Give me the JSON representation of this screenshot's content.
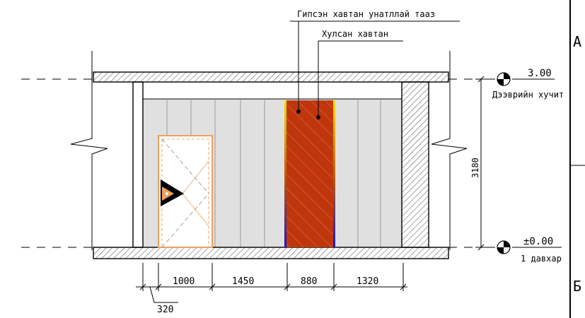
{
  "labels": {
    "leader_top": "Гипсэн хавтан унатллай тааз",
    "leader_second": "Хулсан хавтан"
  },
  "levels": {
    "upper": {
      "value": "3.00",
      "name": "Дээврийн хучит"
    },
    "lower": {
      "value": "±0.00",
      "name": "1 давхар"
    }
  },
  "dimensions": {
    "height": "3180",
    "segments": [
      "1000",
      "1450",
      "880",
      "1320"
    ],
    "offset": "320"
  },
  "frame": {
    "grid_letter_a": "А",
    "grid_letter_b": "Б"
  },
  "colors": {
    "wall_fill": "#e0e0e0",
    "accent_panel": "#c0360c",
    "panel_edge_top": "#f0e000",
    "panel_edge_bottom": "#1818c8",
    "door_outline": "#f0a060"
  }
}
